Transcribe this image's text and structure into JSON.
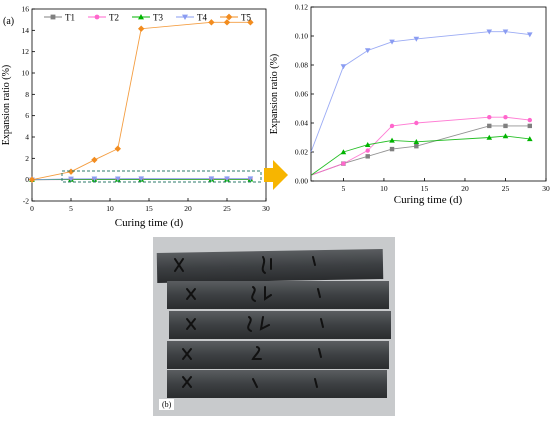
{
  "panel_label_a": "(a)",
  "panel_label_b": "(b)",
  "colors": {
    "T1": "#808080",
    "T2": "#ff66cc",
    "T3": "#00b400",
    "T4": "#8a9cf2",
    "T5": "#f28c1f",
    "arrow": "#f7b500",
    "box": "#2e7b6b"
  },
  "chart_data": [
    {
      "type": "line",
      "xlabel": "Curing time (d)",
      "ylabel": "Expansion ratio (%)",
      "xlim": [
        0,
        30
      ],
      "ylim": [
        -2,
        16
      ],
      "xticks": [
        0,
        5,
        10,
        15,
        20,
        25,
        30
      ],
      "yticks": [
        -2,
        0,
        2,
        4,
        6,
        8,
        10,
        12,
        14,
        16
      ],
      "legend": "top",
      "x": [
        0,
        5,
        8,
        11,
        14,
        23,
        25,
        28
      ],
      "series": [
        {
          "name": "T1",
          "marker": "square",
          "values": [
            0,
            0.012,
            0.017,
            0.022,
            0.024,
            0.038,
            0.038,
            0.038
          ]
        },
        {
          "name": "T2",
          "marker": "circle",
          "values": [
            0,
            0.012,
            0.021,
            0.038,
            0.04,
            0.044,
            0.044,
            0.042
          ]
        },
        {
          "name": "T3",
          "marker": "triangle-up",
          "values": [
            0,
            0.02,
            0.025,
            0.028,
            0.027,
            0.03,
            0.031,
            0.029
          ]
        },
        {
          "name": "T4",
          "marker": "triangle-down",
          "values": [
            0,
            0.079,
            0.09,
            0.096,
            0.098,
            0.103,
            0.103,
            0.101
          ]
        },
        {
          "name": "T5",
          "marker": "diamond",
          "values": [
            0,
            0.75,
            1.85,
            2.9,
            14.15,
            14.75,
            14.75,
            14.75
          ]
        }
      ]
    },
    {
      "type": "line",
      "xlabel": "Curing time (d)",
      "ylabel": "Expansion ratio (%)",
      "xlim": [
        1,
        30
      ],
      "ylim": [
        0,
        0.12
      ],
      "xticks": [
        5,
        10,
        15,
        20,
        25,
        30
      ],
      "yticks": [
        0.0,
        0.02,
        0.04,
        0.06,
        0.08,
        0.1,
        0.12
      ],
      "ytick_labels": [
        "0.00",
        "0.02",
        "0.04",
        "0.06",
        "0.08",
        "0.10",
        "0.12"
      ],
      "series": [
        {
          "name": "T1",
          "marker": "square",
          "x": [
            1,
            5,
            8,
            11,
            14,
            23,
            25,
            28
          ],
          "values": [
            0.004,
            0.012,
            0.017,
            0.022,
            0.024,
            0.038,
            0.038,
            0.038
          ]
        },
        {
          "name": "T2",
          "marker": "circle",
          "x": [
            1,
            5,
            8,
            11,
            14,
            23,
            25,
            28
          ],
          "values": [
            0.004,
            0.012,
            0.021,
            0.038,
            0.04,
            0.044,
            0.044,
            0.042
          ]
        },
        {
          "name": "T3",
          "marker": "triangle-up",
          "x": [
            1,
            5,
            8,
            11,
            14,
            23,
            25,
            28
          ],
          "values": [
            0.004,
            0.02,
            0.025,
            0.028,
            0.027,
            0.03,
            0.031,
            0.029
          ]
        },
        {
          "name": "T4",
          "marker": "triangle-down",
          "x": [
            1,
            5,
            8,
            11,
            14,
            23,
            25,
            28
          ],
          "values": [
            0.02,
            0.079,
            0.09,
            0.096,
            0.098,
            0.103,
            0.103,
            0.101
          ]
        }
      ]
    }
  ]
}
